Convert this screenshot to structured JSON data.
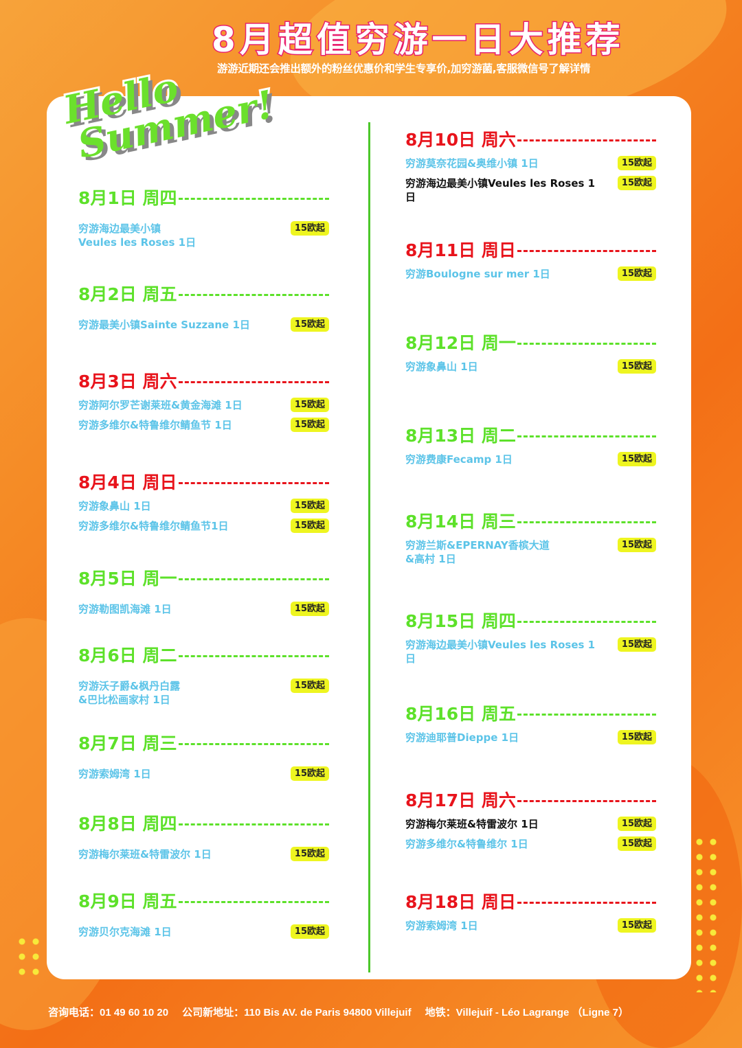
{
  "header": {
    "title": "8月超值穷游一日大推荐",
    "subtitle": "游游近期还会推出额外的粉丝优惠价和学生专享价,加穷游菌,客服微信号了解详情"
  },
  "logo": {
    "line1": "Hello",
    "line2": "Summer!"
  },
  "colors": {
    "green": "#5de12a",
    "red": "#e8141c",
    "item": "#5cc4e8",
    "badge": "#eef520"
  },
  "left_column": [
    {
      "date": "8月1日",
      "weekday": "周四",
      "color": "green",
      "items": [
        {
          "text": "穷游海边最美小镇\nVeules les Roses  1日",
          "price": "15欧起"
        }
      ]
    },
    {
      "date": "8月2日",
      "weekday": "周五",
      "color": "green",
      "items": [
        {
          "text": "穷游最美小镇Sainte Suzzane  1日",
          "price": "15欧起"
        }
      ]
    },
    {
      "date": "8月3日",
      "weekday": "周六",
      "color": "red",
      "items": [
        {
          "text": "穷游阿尔罗芒谢莱班&黄金海滩  1日",
          "price": "15欧起"
        },
        {
          "text": "穷游多维尔&特鲁维尔鲭鱼节  1日",
          "price": "15欧起"
        }
      ]
    },
    {
      "date": "8月4日",
      "weekday": "周日",
      "color": "red",
      "items": [
        {
          "text": "穷游象鼻山  1日",
          "price": "15欧起"
        },
        {
          "text": "穷游多维尔&特鲁维尔鲭鱼节1日",
          "price": "15欧起"
        }
      ]
    },
    {
      "date": "8月5日",
      "weekday": "周一",
      "color": "green",
      "items": [
        {
          "text": "穷游勒图凯海滩  1日",
          "price": "15欧起"
        }
      ]
    },
    {
      "date": "8月6日",
      "weekday": "周二",
      "color": "green",
      "items": [
        {
          "text": "穷游沃子爵&枫丹白露\n&巴比松画家村 1日",
          "price": "15欧起"
        }
      ]
    },
    {
      "date": "8月7日",
      "weekday": "周三",
      "color": "green",
      "items": [
        {
          "text": "穷游索姆湾  1日",
          "price": "15欧起"
        }
      ]
    },
    {
      "date": "8月8日",
      "weekday": "周四",
      "color": "green",
      "items": [
        {
          "text": "穷游梅尔莱班&特雷波尔  1日",
          "price": "15欧起"
        }
      ]
    },
    {
      "date": "8月9日",
      "weekday": "周五",
      "color": "green",
      "items": [
        {
          "text": "穷游贝尔克海滩  1日",
          "price": "15欧起"
        }
      ]
    }
  ],
  "right_column": [
    {
      "date": "8月10日",
      "weekday": "周六",
      "color": "red",
      "items": [
        {
          "text": "穷游莫奈花园&奥维小镇  1日",
          "price": "15欧起"
        },
        {
          "text": "穷游海边最美小镇Veules les Roses  1日",
          "price": "15欧起",
          "dark": true
        }
      ]
    },
    {
      "date": "8月11日",
      "weekday": "周日",
      "color": "red",
      "items": [
        {
          "text": "穷游Boulogne sur mer  1日",
          "price": "15欧起"
        }
      ]
    },
    {
      "date": "8月12日",
      "weekday": "周一",
      "color": "green",
      "items": [
        {
          "text": "穷游象鼻山  1日",
          "price": "15欧起"
        }
      ]
    },
    {
      "date": "8月13日",
      "weekday": "周二",
      "color": "green",
      "items": [
        {
          "text": "穷游费康Fecamp  1日",
          "price": "15欧起"
        }
      ]
    },
    {
      "date": "8月14日",
      "weekday": "周三",
      "color": "green",
      "items": [
        {
          "text": "穷游兰斯&EPERNAY香槟大道\n&高村 1日",
          "price": "15欧起"
        }
      ]
    },
    {
      "date": "8月15日",
      "weekday": "周四",
      "color": "green",
      "items": [
        {
          "text": "穷游海边最美小镇Veules les Roses  1日",
          "price": "15欧起"
        }
      ]
    },
    {
      "date": "8月16日",
      "weekday": "周五",
      "color": "green",
      "items": [
        {
          "text": "穷游迪耶普Dieppe  1日",
          "price": "15欧起"
        }
      ]
    },
    {
      "date": "8月17日",
      "weekday": "周六",
      "color": "red",
      "items": [
        {
          "text": "穷游梅尔莱班&特雷波尔 1日",
          "price": "15欧起",
          "dark": true
        },
        {
          "text": "穷游多维尔&特鲁维尔  1日",
          "price": "15欧起"
        }
      ]
    },
    {
      "date": "8月18日",
      "weekday": "周日",
      "color": "red",
      "items": [
        {
          "text": "穷游索姆湾  1日",
          "price": "15欧起"
        }
      ]
    }
  ],
  "footer": {
    "phone": "咨询电话：01 49 60 10 20",
    "address": "公司新地址：110 Bis AV. de Paris 94800 Villejuif",
    "metro": "地铁：Villejuif - Léo Lagrange （Ligne 7）"
  }
}
